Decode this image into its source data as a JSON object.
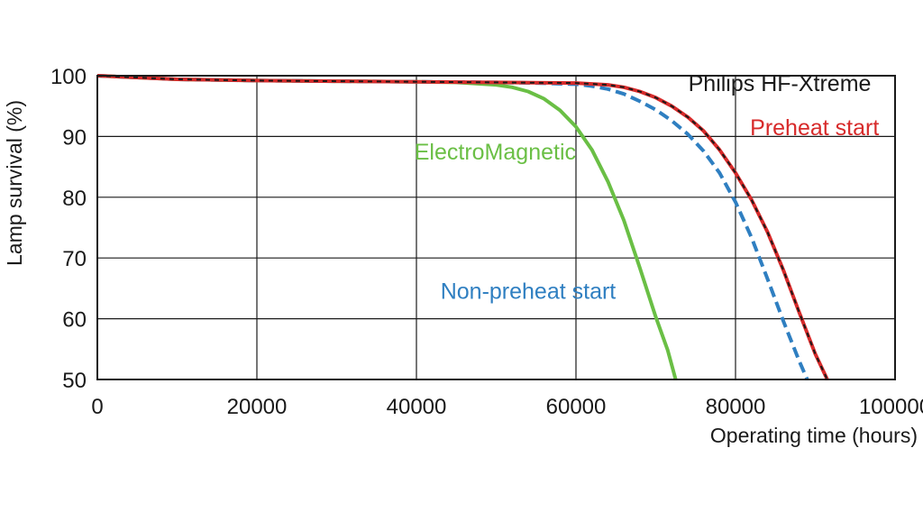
{
  "chart_data": {
    "type": "line",
    "title": "",
    "xlabel": "Operating time (hours)",
    "ylabel": "Lamp survival  (%)",
    "xlim": [
      0,
      100000
    ],
    "ylim": [
      50,
      100
    ],
    "x_ticks": [
      0,
      20000,
      40000,
      60000,
      80000,
      100000
    ],
    "x_tick_labels": [
      "0",
      "20000",
      "40000",
      "60000",
      "80000",
      "100000"
    ],
    "y_ticks": [
      50,
      60,
      70,
      80,
      90,
      100
    ],
    "y_tick_labels": [
      "50",
      "60",
      "70",
      "80",
      "90",
      "100"
    ],
    "grid": true,
    "series": [
      {
        "name": "ElectroMagnetic",
        "color": "#6abf45",
        "style": "solid",
        "points": [
          [
            0,
            100
          ],
          [
            10000,
            99.4
          ],
          [
            20000,
            99.2
          ],
          [
            30000,
            99.1
          ],
          [
            40000,
            99.0
          ],
          [
            45000,
            98.9
          ],
          [
            50000,
            98.5
          ],
          [
            52000,
            98.1
          ],
          [
            54000,
            97.4
          ],
          [
            56000,
            96.2
          ],
          [
            58000,
            94.3
          ],
          [
            60000,
            91.6
          ],
          [
            62000,
            87.8
          ],
          [
            64000,
            82.6
          ],
          [
            66000,
            76.2
          ],
          [
            68000,
            68.4
          ],
          [
            70000,
            60.3
          ],
          [
            71500,
            54.8
          ],
          [
            72500,
            50
          ]
        ]
      },
      {
        "name": "Non-preheat start",
        "color": "#2f7fc1",
        "style": "dashed",
        "points": [
          [
            0,
            100
          ],
          [
            10000,
            99.4
          ],
          [
            20000,
            99.2
          ],
          [
            30000,
            99.1
          ],
          [
            40000,
            99.0
          ],
          [
            50000,
            98.9
          ],
          [
            55000,
            98.8
          ],
          [
            60000,
            98.6
          ],
          [
            62000,
            98.3
          ],
          [
            64000,
            97.8
          ],
          [
            66000,
            97.0
          ],
          [
            68000,
            95.8
          ],
          [
            70000,
            94.4
          ],
          [
            72000,
            92.6
          ],
          [
            74000,
            90.4
          ],
          [
            76000,
            87.6
          ],
          [
            78000,
            84.0
          ],
          [
            80000,
            79.2
          ],
          [
            82000,
            73.4
          ],
          [
            84000,
            66.6
          ],
          [
            86000,
            59.6
          ],
          [
            88000,
            53.0
          ],
          [
            89000,
            50
          ]
        ]
      },
      {
        "name": "Preheat start",
        "color": "#d72a2a",
        "style": "solid",
        "points": [
          [
            0,
            100
          ],
          [
            10000,
            99.4
          ],
          [
            20000,
            99.2
          ],
          [
            30000,
            99.1
          ],
          [
            40000,
            99.0
          ],
          [
            50000,
            98.9
          ],
          [
            60000,
            98.8
          ],
          [
            64000,
            98.5
          ],
          [
            66000,
            98.1
          ],
          [
            68000,
            97.4
          ],
          [
            70000,
            96.4
          ],
          [
            72000,
            95.0
          ],
          [
            74000,
            93.2
          ],
          [
            76000,
            90.9
          ],
          [
            78000,
            87.8
          ],
          [
            80000,
            84.0
          ],
          [
            82000,
            79.6
          ],
          [
            84000,
            74.3
          ],
          [
            86000,
            68.0
          ],
          [
            88000,
            61.0
          ],
          [
            90000,
            54.2
          ],
          [
            91500,
            50
          ]
        ]
      },
      {
        "name": "Philips HF-Xtreme",
        "color": "#1a1a1a",
        "style": "dashed-overlay",
        "points": [
          [
            0,
            100
          ],
          [
            10000,
            99.4
          ],
          [
            20000,
            99.2
          ],
          [
            30000,
            99.1
          ],
          [
            40000,
            99.0
          ],
          [
            50000,
            98.9
          ],
          [
            60000,
            98.8
          ],
          [
            64000,
            98.5
          ],
          [
            66000,
            98.1
          ],
          [
            68000,
            97.4
          ],
          [
            70000,
            96.4
          ],
          [
            72000,
            95.0
          ],
          [
            74000,
            93.2
          ],
          [
            76000,
            90.9
          ],
          [
            78000,
            87.8
          ],
          [
            80000,
            84.0
          ],
          [
            82000,
            79.6
          ],
          [
            84000,
            74.3
          ],
          [
            86000,
            68.0
          ],
          [
            88000,
            61.0
          ],
          [
            90000,
            54.2
          ],
          [
            91500,
            50
          ]
        ]
      }
    ],
    "annotations": [
      {
        "text": "Philips HF-Xtreme",
        "color": "#1a1a1a",
        "x": 97000,
        "y": 97.5,
        "anchor": "end"
      },
      {
        "text": "Preheat start",
        "color": "#d72a2a",
        "x": 98000,
        "y": 90.2,
        "anchor": "end"
      },
      {
        "text": "ElectroMagnetic",
        "color": "#6abf45",
        "x": 60000,
        "y": 86.2,
        "anchor": "end"
      },
      {
        "text": "Non-preheat start",
        "color": "#2f7fc1",
        "x": 65000,
        "y": 63.3,
        "anchor": "end"
      }
    ]
  }
}
